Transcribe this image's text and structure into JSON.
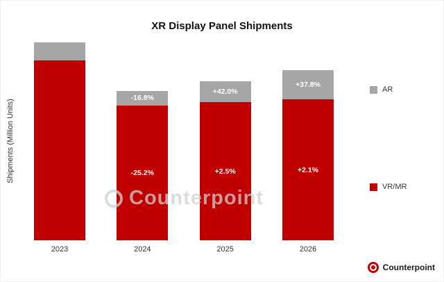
{
  "title": "XR Display Panel Shipments",
  "y_axis_label": "Shipments (Million Units)",
  "watermark": {
    "text": "Counterpoint"
  },
  "footer": {
    "brand": "Counterpoint"
  },
  "legend": [
    {
      "label": "AR",
      "color": "#a6a6a6"
    },
    {
      "label": "VR/MR",
      "color": "#c00000"
    }
  ],
  "chart_data": {
    "type": "bar",
    "stacked": true,
    "title": "XR Display Panel Shipments",
    "xlabel": "",
    "ylabel": "Shipments (Million Units)",
    "categories": [
      "2023",
      "2024",
      "2025",
      "2026"
    ],
    "series": [
      {
        "name": "VR/MR",
        "color": "#c00000",
        "values": [
          100,
          74.8,
          76.7,
          78.3
        ],
        "growth_labels": [
          "",
          "-25.2%",
          "+2.5%",
          "+2.1%"
        ]
      },
      {
        "name": "AR",
        "color": "#a6a6a6",
        "values": [
          10.0,
          8.3,
          11.8,
          16.3
        ],
        "growth_labels": [
          "",
          "-16.8%",
          "+42.0%",
          "+37.8%"
        ]
      }
    ],
    "legend_position": "right",
    "grid": false
  }
}
